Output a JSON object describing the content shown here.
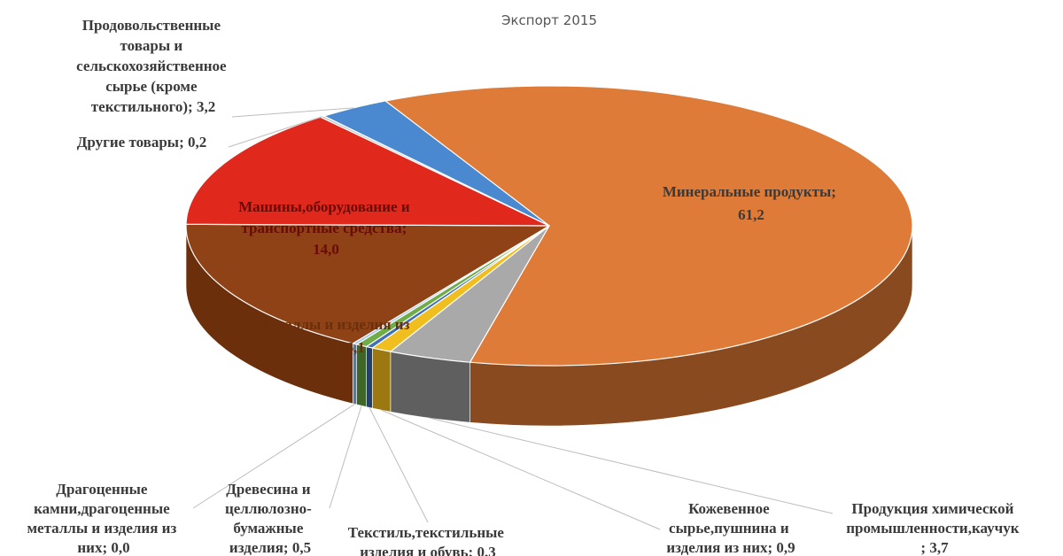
{
  "chart_data": {
    "type": "pie",
    "title": "Экспорт 2015",
    "slices": [
      {
        "name": "Минеральные продукты",
        "value": 61.2,
        "value_label": "61,2",
        "color": "#DE7B38",
        "side": "#8A4A1F"
      },
      {
        "name": "Продукция химической промышленности,каучук",
        "value": 3.7,
        "value_label": "3,7",
        "color": "#A9A9A9",
        "side": "#5F5F5F"
      },
      {
        "name": "Кожевенное сырье,пушнина и изделия из них",
        "value": 0.9,
        "value_label": "0,9",
        "color": "#F0BE1E",
        "side": "#9C7810"
      },
      {
        "name": "Текстиль,текстильные изделия и обувь",
        "value": 0.3,
        "value_label": "0,3",
        "color": "#3F6FB5",
        "side": "#243F69"
      },
      {
        "name": "Древесина и целлюлозно-бумажные изделия",
        "value": 0.5,
        "value_label": "0,5",
        "color": "#70AD47",
        "side": "#3F6627"
      },
      {
        "name": "Драгоценные камни,драгоценные металлы и изделия из них",
        "value": 0.0,
        "value_label": "0,0",
        "color": "#9DC3E6",
        "side": "#5A7A96"
      },
      {
        "name": "Металлы и изделия из них",
        "value": 16.1,
        "value_label": "16,1",
        "color": "#8E4216",
        "side": "#6B2F0C"
      },
      {
        "name": "Машины,оборудование и транспортные средства",
        "value": 14.0,
        "value_label": "14,0",
        "color": "#E0281C",
        "side": "#8A1810"
      },
      {
        "name": "Другие товары",
        "value": 0.2,
        "value_label": "0,2",
        "color": "#C9C9C9",
        "side": "#808080"
      },
      {
        "name": "Продовольственные товары и сельскохозяйственное сырье (кроме текстильного)",
        "value": 3.2,
        "value_label": "3,2",
        "color": "#4A89CF",
        "side": "#2A5686"
      }
    ]
  },
  "labels": {
    "mineral": [
      "Минеральные продукты;",
      "61,2"
    ],
    "chem": [
      "Продукция химической",
      "промышленности,каучук",
      "; 3,7"
    ],
    "leather": [
      "Кожевенное",
      "сырье,пушнина и",
      "изделия из них; 0,9"
    ],
    "textile": [
      "Текстиль,текстильные",
      "изделия и обувь; 0,3"
    ],
    "wood": [
      "Древесина и",
      "целлюлозно-",
      "бумажные",
      "изделия; 0,5"
    ],
    "precious": [
      "Драгоценные",
      "камни,драгоценные",
      "металлы и изделия из",
      "них; 0,0"
    ],
    "metals": [
      "Металлы и изделия из",
      "них; 16,1"
    ],
    "machines": [
      "Машины,оборудование и",
      "транспортные средства;",
      "14,0"
    ],
    "other": [
      "Другие товары; 0,2"
    ],
    "food": [
      "Продовольственные",
      "товары и",
      "сельскохозяйственное",
      "сырье (кроме",
      "текстильного); 3,2"
    ]
  }
}
